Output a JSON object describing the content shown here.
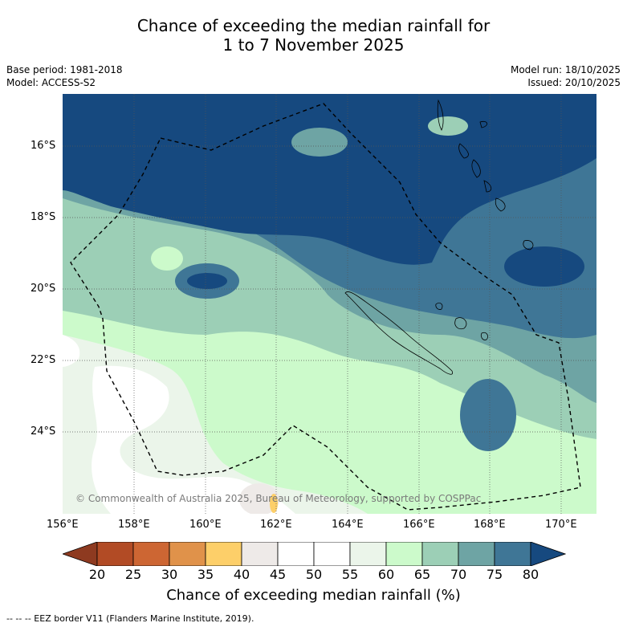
{
  "title": {
    "line1": "Chance of exceeding the median rainfall for",
    "line2": "1 to 7 November 2025"
  },
  "meta": {
    "base_period": "Base period: 1981-2018",
    "model": "Model: ACCESS-S2",
    "model_run": "Model run: 18/10/2025",
    "issued": "Issued: 20/10/2025"
  },
  "map": {
    "lat_labels": [
      "16°S",
      "18°S",
      "20°S",
      "22°S",
      "24°S"
    ],
    "lon_labels": [
      "156°E",
      "158°E",
      "160°E",
      "162°E",
      "164°E",
      "166°E",
      "168°E",
      "170°E"
    ],
    "copyright": "© Commonwealth of Australia 2025, Bureau of Meteorology, supported by COSPPac"
  },
  "colorbar": {
    "ticks": [
      "20",
      "25",
      "30",
      "35",
      "40",
      "45",
      "50",
      "55",
      "60",
      "65",
      "70",
      "75",
      "80"
    ],
    "colors": [
      "#b24b25",
      "#cd6633",
      "#e0924a",
      "#fdcf69",
      "#eeeae8",
      "#ffffff",
      "#ffffff",
      "#ebf5ea",
      "#ccfacb",
      "#9ccfb6",
      "#6ea4a4",
      "#3f7696"
    ],
    "under_color": "#8e3a20",
    "over_color": "#16497f",
    "label": "Chance of exceeding median rainfall (%)"
  },
  "footer": "--  --  -- EEZ border V11 (Flanders Marine Institute, 2019)."
}
